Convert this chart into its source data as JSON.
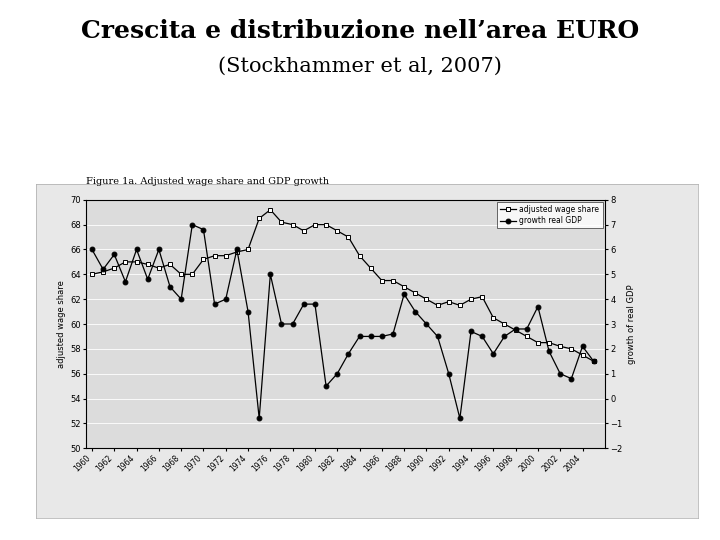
{
  "title_line1": "Crescita e distribuzione nell’area EURO",
  "title_line2": "(Stockhammer et al, 2007)",
  "figure_title": "Figure 1a. Adjusted wage share and GDP growth",
  "years": [
    1960,
    1961,
    1962,
    1963,
    1964,
    1965,
    1966,
    1967,
    1968,
    1969,
    1970,
    1971,
    1972,
    1973,
    1974,
    1975,
    1976,
    1977,
    1978,
    1979,
    1980,
    1981,
    1982,
    1983,
    1984,
    1985,
    1986,
    1987,
    1988,
    1989,
    1990,
    1991,
    1992,
    1993,
    1994,
    1995,
    1996,
    1997,
    1998,
    1999,
    2000,
    2001,
    2002,
    2003,
    2004,
    2005
  ],
  "wage_share": [
    64.0,
    64.2,
    64.5,
    65.0,
    65.0,
    64.8,
    64.5,
    64.8,
    64.0,
    64.0,
    65.2,
    65.5,
    65.5,
    65.8,
    66.0,
    68.5,
    69.2,
    68.2,
    68.0,
    67.5,
    68.0,
    68.0,
    67.5,
    67.0,
    65.5,
    64.5,
    63.5,
    63.5,
    63.0,
    62.5,
    62.0,
    61.5,
    61.8,
    61.5,
    62.0,
    62.2,
    60.5,
    60.0,
    59.5,
    59.0,
    58.5,
    58.5,
    58.2,
    58.0,
    57.5,
    57.0
  ],
  "gdp_growth": [
    6.0,
    5.2,
    5.8,
    4.7,
    6.0,
    4.8,
    6.0,
    4.5,
    4.0,
    7.0,
    6.8,
    3.8,
    4.0,
    6.0,
    3.5,
    -0.8,
    5.0,
    3.0,
    3.0,
    3.8,
    3.8,
    0.5,
    1.0,
    1.8,
    2.5,
    2.5,
    2.5,
    2.6,
    4.2,
    3.5,
    3.0,
    2.5,
    1.0,
    -0.8,
    2.7,
    2.5,
    1.8,
    2.5,
    2.8,
    2.8,
    3.7,
    1.9,
    1.0,
    0.8,
    2.1,
    1.5
  ],
  "left_ylim": [
    50,
    70
  ],
  "right_ylim": [
    -2,
    8
  ],
  "left_yticks": [
    50,
    52,
    54,
    56,
    58,
    60,
    62,
    64,
    66,
    68,
    70
  ],
  "right_yticks": [
    -2,
    -1,
    0,
    1,
    2,
    3,
    4,
    5,
    6,
    7,
    8
  ],
  "legend_labels": [
    "adjusted wage share",
    "growth real GDP"
  ],
  "left_ylabel": "adjusted wage share",
  "right_ylabel": "growth of real GDP",
  "slide_bg": "#ffffff",
  "chart_bg": "#e8e8e8",
  "chart_inner_bg": "#dcdcdc",
  "title_fontsize": 18,
  "subtitle_fontsize": 15
}
